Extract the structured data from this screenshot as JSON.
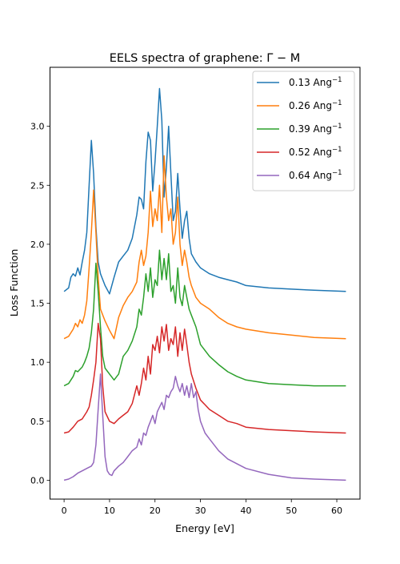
{
  "chart_data": {
    "type": "line",
    "title_text": "EELS spectra of graphene: ",
    "title_math": "Γ − M",
    "xlabel": "Energy [eV]",
    "ylabel": "Loss Function",
    "xlim": [
      -3.1,
      65.1
    ],
    "ylim": [
      -0.16,
      3.5
    ],
    "xticks": [
      0,
      10,
      20,
      30,
      40,
      50,
      60
    ],
    "yticks": [
      0.0,
      0.5,
      1.0,
      1.5,
      2.0,
      2.5,
      3.0
    ],
    "xtick_labels": [
      "0",
      "10",
      "20",
      "30",
      "40",
      "50",
      "60"
    ],
    "ytick_labels": [
      "0.0",
      "0.5",
      "1.0",
      "1.5",
      "2.0",
      "2.5",
      "3.0"
    ],
    "grid": false,
    "legend_position": "top-right",
    "series": [
      {
        "name_base": "0.13 Ang",
        "name_sup": "−1",
        "color": "#1f77b4",
        "x": [
          0,
          1,
          1.5,
          2,
          2.5,
          3,
          3.5,
          4,
          4.5,
          5,
          5.5,
          6,
          6.5,
          7,
          7.5,
          8,
          9,
          10,
          11,
          12,
          13,
          14,
          15,
          16,
          16.5,
          17,
          17.5,
          18,
          18.5,
          19,
          19.5,
          20,
          20.5,
          21,
          21.5,
          22,
          22.5,
          23,
          23.5,
          24,
          24.5,
          25,
          25.5,
          26,
          26.5,
          27,
          27.5,
          28,
          29,
          30,
          32,
          34,
          36,
          38,
          40,
          45,
          50,
          55,
          62
        ],
        "values": [
          1.6,
          1.63,
          1.72,
          1.75,
          1.73,
          1.8,
          1.74,
          1.85,
          1.95,
          2.1,
          2.5,
          2.88,
          2.6,
          2.15,
          1.85,
          1.75,
          1.65,
          1.58,
          1.72,
          1.85,
          1.9,
          1.95,
          2.05,
          2.25,
          2.4,
          2.38,
          2.3,
          2.7,
          2.95,
          2.88,
          2.45,
          2.7,
          3.0,
          3.32,
          3.05,
          2.4,
          2.65,
          3.0,
          2.6,
          2.2,
          2.28,
          2.6,
          2.3,
          2.05,
          2.2,
          2.28,
          2.05,
          1.92,
          1.85,
          1.8,
          1.75,
          1.72,
          1.7,
          1.68,
          1.65,
          1.63,
          1.62,
          1.61,
          1.6
        ]
      },
      {
        "name_base": "0.26 Ang",
        "name_sup": "−1",
        "color": "#ff7f0e",
        "x": [
          0,
          1,
          2,
          2.5,
          3,
          3.5,
          4,
          4.5,
          5,
          5.5,
          6,
          6.5,
          7,
          7.5,
          8,
          9,
          10,
          11,
          12,
          13,
          14,
          15,
          16,
          16.5,
          17,
          17.5,
          18,
          18.5,
          19,
          19.5,
          20,
          20.5,
          21,
          21.5,
          22,
          22.5,
          23,
          23.5,
          24,
          24.5,
          25,
          25.5,
          26,
          26.5,
          27,
          27.5,
          28,
          29,
          30,
          32,
          34,
          36,
          38,
          40,
          45,
          50,
          55,
          62
        ],
        "values": [
          1.2,
          1.22,
          1.28,
          1.33,
          1.3,
          1.36,
          1.33,
          1.4,
          1.52,
          1.8,
          2.1,
          2.46,
          2.1,
          1.72,
          1.45,
          1.35,
          1.27,
          1.2,
          1.38,
          1.48,
          1.55,
          1.6,
          1.68,
          1.85,
          1.95,
          1.82,
          1.9,
          2.1,
          2.45,
          2.15,
          2.3,
          2.2,
          2.5,
          2.1,
          2.75,
          2.4,
          2.2,
          2.3,
          2.0,
          2.1,
          2.4,
          2.0,
          1.82,
          1.95,
          1.85,
          1.72,
          1.65,
          1.55,
          1.5,
          1.45,
          1.38,
          1.33,
          1.3,
          1.28,
          1.25,
          1.23,
          1.21,
          1.2
        ]
      },
      {
        "name_base": "0.39 Ang",
        "name_sup": "−1",
        "color": "#2ca02c",
        "x": [
          0,
          1,
          2,
          2.5,
          3,
          3.5,
          4,
          4.5,
          5,
          5.5,
          6,
          6.5,
          7,
          7.5,
          8,
          8.5,
          9,
          10,
          11,
          12,
          13,
          14,
          15,
          16,
          16.5,
          17,
          17.5,
          18,
          18.5,
          19,
          19.5,
          20,
          20.5,
          21,
          21.5,
          22,
          22.5,
          23,
          23.5,
          24,
          24.5,
          25,
          25.5,
          26,
          26.5,
          27,
          27.5,
          28,
          29,
          30,
          32,
          34,
          36,
          38,
          40,
          45,
          50,
          55,
          62
        ],
        "values": [
          0.8,
          0.82,
          0.88,
          0.93,
          0.92,
          0.94,
          0.96,
          1.0,
          1.05,
          1.12,
          1.25,
          1.45,
          1.84,
          1.6,
          1.3,
          1.05,
          0.95,
          0.9,
          0.85,
          0.9,
          1.05,
          1.1,
          1.18,
          1.3,
          1.45,
          1.4,
          1.55,
          1.75,
          1.6,
          1.8,
          1.55,
          1.7,
          1.65,
          1.95,
          1.7,
          1.88,
          1.7,
          1.92,
          1.6,
          1.65,
          1.5,
          1.8,
          1.55,
          1.48,
          1.65,
          1.55,
          1.45,
          1.4,
          1.3,
          1.15,
          1.05,
          0.98,
          0.92,
          0.88,
          0.85,
          0.82,
          0.81,
          0.8,
          0.8
        ]
      },
      {
        "name_base": "0.52 Ang",
        "name_sup": "−1",
        "color": "#d62728",
        "x": [
          0,
          1,
          2,
          3,
          4,
          5,
          5.5,
          6,
          6.5,
          7,
          7.5,
          8,
          8.5,
          9,
          10,
          11,
          12,
          13,
          14,
          15,
          16,
          16.5,
          17,
          17.5,
          18,
          18.5,
          19,
          19.5,
          20,
          20.5,
          21,
          21.5,
          22,
          22.5,
          23,
          23.5,
          24,
          24.5,
          25,
          25.5,
          26,
          26.5,
          27,
          27.5,
          28,
          29,
          30,
          32,
          34,
          36,
          38,
          40,
          45,
          50,
          55,
          62
        ],
        "values": [
          0.4,
          0.41,
          0.45,
          0.5,
          0.52,
          0.58,
          0.62,
          0.72,
          0.85,
          1.0,
          1.33,
          1.2,
          0.8,
          0.58,
          0.5,
          0.48,
          0.52,
          0.55,
          0.58,
          0.65,
          0.8,
          0.72,
          0.82,
          0.95,
          0.85,
          1.05,
          0.9,
          1.15,
          1.1,
          1.22,
          1.08,
          1.3,
          1.18,
          1.32,
          1.1,
          1.2,
          1.15,
          1.3,
          1.05,
          1.25,
          1.1,
          1.28,
          1.15,
          1.0,
          0.9,
          0.78,
          0.68,
          0.6,
          0.55,
          0.5,
          0.48,
          0.45,
          0.43,
          0.42,
          0.41,
          0.4
        ]
      },
      {
        "name_base": "0.64 Ang",
        "name_sup": "−1",
        "color": "#9467bd",
        "x": [
          0,
          1,
          2,
          3,
          4,
          5,
          6,
          6.5,
          7,
          7.5,
          8,
          8.5,
          9,
          9.5,
          10,
          10.5,
          11,
          12,
          13,
          14,
          15,
          16,
          16.5,
          17,
          17.5,
          18,
          18.5,
          19,
          19.5,
          20,
          20.5,
          21,
          21.5,
          22,
          22.5,
          23,
          23.5,
          24,
          24.5,
          25,
          25.5,
          26,
          26.5,
          27,
          27.5,
          28,
          28.5,
          29,
          29.5,
          30,
          31,
          32,
          34,
          36,
          38,
          40,
          45,
          50,
          55,
          62
        ],
        "values": [
          0.0,
          0.01,
          0.03,
          0.06,
          0.08,
          0.1,
          0.12,
          0.15,
          0.3,
          0.6,
          0.9,
          0.55,
          0.2,
          0.08,
          0.05,
          0.04,
          0.08,
          0.12,
          0.15,
          0.2,
          0.25,
          0.28,
          0.35,
          0.3,
          0.4,
          0.38,
          0.45,
          0.5,
          0.55,
          0.48,
          0.58,
          0.62,
          0.66,
          0.6,
          0.72,
          0.7,
          0.75,
          0.78,
          0.88,
          0.8,
          0.75,
          0.82,
          0.72,
          0.8,
          0.7,
          0.82,
          0.7,
          0.75,
          0.6,
          0.5,
          0.4,
          0.35,
          0.25,
          0.18,
          0.14,
          0.1,
          0.05,
          0.02,
          0.01,
          0.0
        ]
      }
    ]
  }
}
